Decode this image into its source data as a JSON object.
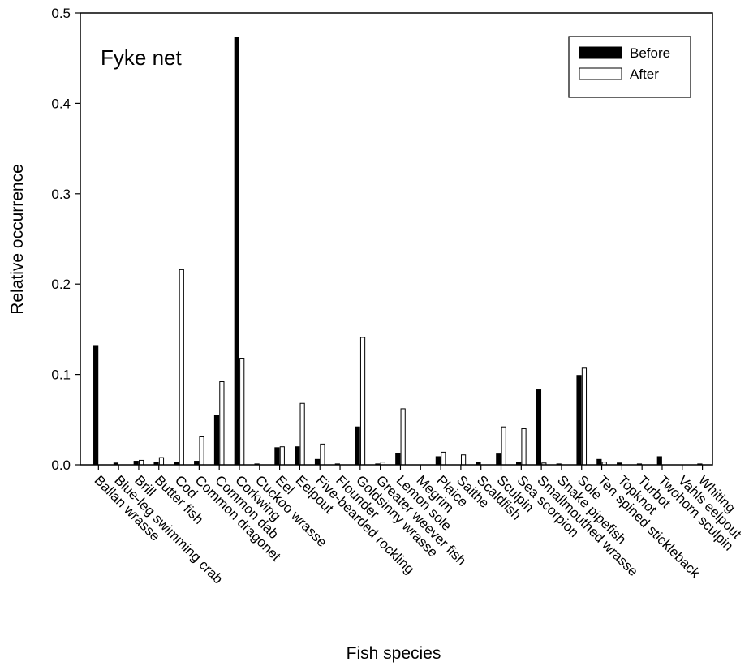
{
  "chart_data": {
    "type": "bar",
    "title": "",
    "panel_label": "Fyke net",
    "xlabel": "Fish species",
    "ylabel": "Relative occurrence",
    "ylim": [
      0,
      0.5
    ],
    "yticks": [
      "0.0",
      "0.1",
      "0.2",
      "0.3",
      "0.4",
      "0.5"
    ],
    "grid": false,
    "legend": {
      "position": "top-right",
      "entries": [
        "Before",
        "After"
      ]
    },
    "colors": {
      "Before": "#000000",
      "After": "#ffffff",
      "outline": "#000000"
    },
    "categories": [
      "Ballan wrasse",
      "Blue-leg swimming crab",
      "Brill",
      "Butter fish",
      "Cod",
      "Common dragonet",
      "Common dab",
      "Corkwing",
      "Cuckoo wrasse",
      "Eel",
      "Eelpout",
      "Five-bearded rockling",
      "Flounder",
      "Goldsinny wrasse",
      "Greater weever fish",
      "Lemon sole",
      "Megrim",
      "Plaice",
      "Saithe",
      "Scaldfish",
      "Sculpin",
      "Sea scorpion",
      "Smallmouthed wrasse",
      "Snake pipefish",
      "Sole",
      "Ten spined stickleback",
      "Topknot",
      "Turbot",
      "Twohorn sculpin",
      "Vahls eelpout",
      "Whiting"
    ],
    "series": [
      {
        "name": "Before",
        "values": [
          0.132,
          0.002,
          0.004,
          0.003,
          0.003,
          0.004,
          0.055,
          0.473,
          0.001,
          0.019,
          0.02,
          0.006,
          0.001,
          0.042,
          0.001,
          0.013,
          0.0,
          0.009,
          0.0,
          0.003,
          0.012,
          0.003,
          0.083,
          0.001,
          0.099,
          0.006,
          0.002,
          0.001,
          0.009,
          0.0,
          0.001
        ]
      },
      {
        "name": "After",
        "values": [
          0.0,
          0.0,
          0.005,
          0.008,
          0.216,
          0.031,
          0.092,
          0.118,
          0.0,
          0.02,
          0.068,
          0.023,
          0.0,
          0.141,
          0.003,
          0.062,
          0.0,
          0.014,
          0.011,
          0.0,
          0.042,
          0.04,
          0.002,
          0.0,
          0.107,
          0.003,
          0.0,
          0.0,
          0.0,
          0.0,
          0.0
        ]
      }
    ]
  }
}
